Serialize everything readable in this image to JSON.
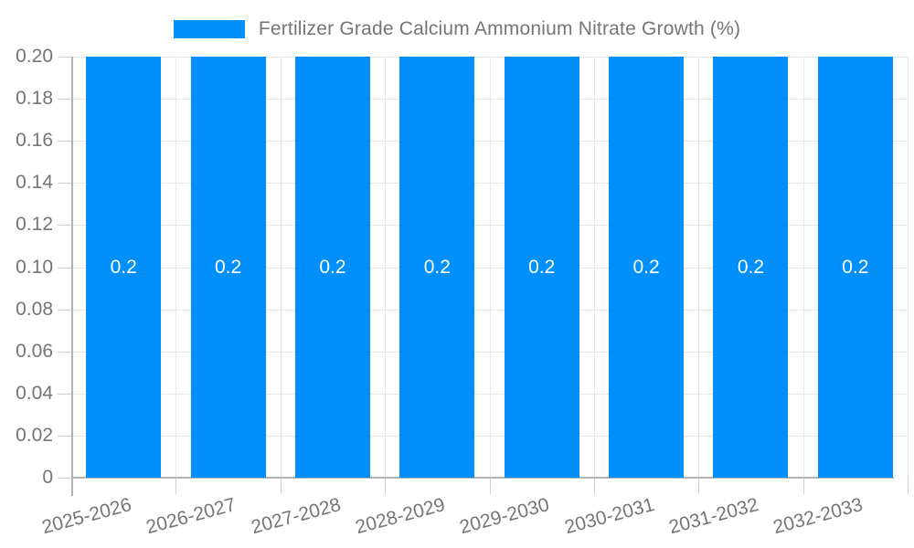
{
  "chart_data": {
    "type": "bar",
    "title": "Fertilizer Grade Calcium Ammonium Nitrate Growth (%)",
    "legend_position": "top",
    "legend_marker": "rect",
    "categories": [
      "2025-2026",
      "2026-2027",
      "2027-2028",
      "2028-2029",
      "2029-2030",
      "2030-2031",
      "2031-2032",
      "2032-2033"
    ],
    "series": [
      {
        "name": "Fertilizer Grade Calcium Ammonium Nitrate Growth (%)",
        "values": [
          0.2,
          0.2,
          0.2,
          0.2,
          0.2,
          0.2,
          0.2,
          0.2
        ],
        "value_labels": [
          "0.2",
          "0.2",
          "0.2",
          "0.2",
          "0.2",
          "0.2",
          "0.2",
          "0.2"
        ]
      }
    ],
    "xlabel": "",
    "ylabel": "",
    "ylim": [
      0,
      0.2
    ],
    "ytick_interval": 0.02,
    "ytick_labels_top_to_bottom": [
      "0.20",
      "0.18",
      "0.16",
      "0.14",
      "0.12",
      "0.10",
      "0.08",
      "0.06",
      "0.04",
      "0.02",
      "0"
    ],
    "grid": true,
    "x_label_rotation_deg": -15,
    "colors": {
      "bar": "#008FFB",
      "bar_label": "#FFFFFF",
      "grid": "#E7E7E7",
      "axis": "#B3B3B3",
      "tick": "#CFCFCF",
      "text": "#757575",
      "background": "#FFFFFF"
    }
  }
}
